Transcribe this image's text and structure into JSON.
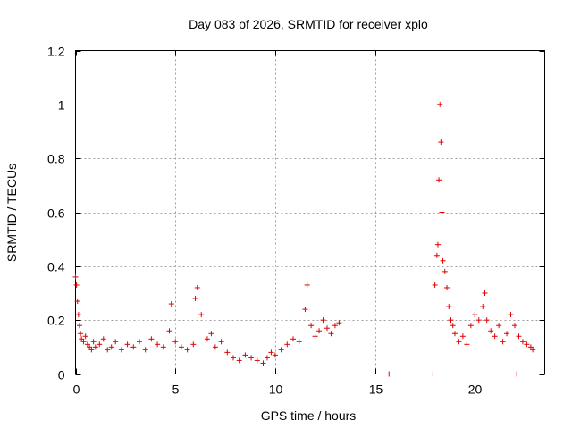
{
  "chart_data": {
    "type": "scatter",
    "title": "Day 083 of 2026, SRMTID for receiver xplo",
    "xlabel": "GPS time / hours",
    "ylabel": "SRMTID / TECUs",
    "xlim": [
      0,
      23.5
    ],
    "ylim": [
      0,
      1.2
    ],
    "xticks": [
      0,
      5,
      10,
      15,
      20
    ],
    "yticks": [
      0,
      0.2,
      0.4,
      0.6,
      0.8,
      1,
      1.2
    ],
    "xtick_labels": [
      "0",
      "5",
      "10",
      "15",
      "20"
    ],
    "ytick_labels": [
      "0",
      "0.2",
      "0.4",
      "0.6",
      "0.8",
      "1",
      "1.2"
    ],
    "grid": true,
    "marker": "plus",
    "color": "#e00000",
    "series": [
      {
        "name": "SRMTID",
        "x": [
          0.0,
          0.05,
          0.1,
          0.15,
          0.2,
          0.25,
          0.3,
          0.4,
          0.5,
          0.6,
          0.7,
          0.8,
          0.9,
          1.0,
          1.2,
          1.4,
          1.6,
          1.8,
          2.0,
          2.3,
          2.6,
          2.9,
          3.2,
          3.5,
          3.8,
          4.1,
          4.4,
          4.7,
          4.8,
          5.0,
          5.3,
          5.6,
          5.9,
          6.0,
          6.1,
          6.3,
          6.6,
          6.8,
          7.0,
          7.3,
          7.6,
          7.9,
          8.2,
          8.5,
          8.8,
          9.1,
          9.4,
          9.6,
          9.8,
          10.0,
          10.3,
          10.6,
          10.9,
          11.2,
          11.5,
          11.6,
          11.8,
          12.0,
          12.2,
          12.4,
          12.6,
          12.8,
          13.0,
          13.2,
          15.7,
          17.9,
          18.0,
          18.1,
          18.15,
          18.2,
          18.25,
          18.3,
          18.35,
          18.4,
          18.5,
          18.6,
          18.7,
          18.8,
          18.9,
          19.0,
          19.2,
          19.4,
          19.6,
          19.8,
          20.0,
          20.2,
          20.4,
          20.5,
          20.6,
          20.8,
          21.0,
          21.2,
          21.4,
          21.6,
          21.8,
          22.0,
          22.1,
          22.2,
          22.4,
          22.6,
          22.8,
          22.9
        ],
        "y": [
          0.36,
          0.33,
          0.27,
          0.22,
          0.18,
          0.15,
          0.13,
          0.12,
          0.14,
          0.11,
          0.1,
          0.09,
          0.12,
          0.1,
          0.11,
          0.13,
          0.09,
          0.1,
          0.12,
          0.09,
          0.11,
          0.1,
          0.12,
          0.09,
          0.13,
          0.11,
          0.1,
          0.16,
          0.26,
          0.12,
          0.1,
          0.09,
          0.11,
          0.28,
          0.32,
          0.22,
          0.13,
          0.15,
          0.1,
          0.12,
          0.08,
          0.06,
          0.05,
          0.07,
          0.06,
          0.05,
          0.04,
          0.06,
          0.08,
          0.07,
          0.09,
          0.11,
          0.13,
          0.12,
          0.24,
          0.33,
          0.18,
          0.14,
          0.16,
          0.2,
          0.17,
          0.15,
          0.18,
          0.19,
          0.0,
          0.0,
          0.33,
          0.44,
          0.48,
          0.72,
          1.0,
          0.86,
          0.6,
          0.42,
          0.38,
          0.32,
          0.25,
          0.2,
          0.18,
          0.15,
          0.12,
          0.14,
          0.11,
          0.18,
          0.22,
          0.2,
          0.25,
          0.3,
          0.2,
          0.16,
          0.14,
          0.18,
          0.12,
          0.15,
          0.22,
          0.18,
          0.0,
          0.14,
          0.12,
          0.11,
          0.1,
          0.09
        ]
      }
    ]
  }
}
